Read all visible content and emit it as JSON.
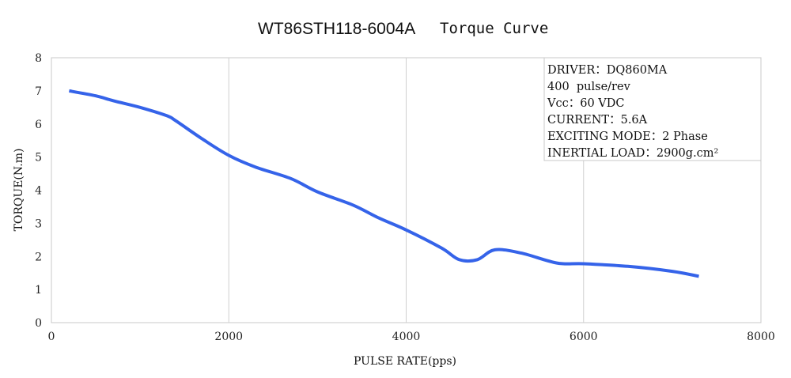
{
  "title": {
    "model": "WT86STH118-6004A",
    "curve": "Torque Curve"
  },
  "info_box": [
    "DRIVER：DQ860MA",
    "400  pulse/rev",
    "Vcc：60 VDC",
    "CURRENT：5.6A",
    "EXCITING MODE：2 Phase",
    "INERTIAL LOAD：2900g.cm²"
  ],
  "chart_data": {
    "type": "line",
    "title": "WT86STH118-6004A  Torque Curve",
    "xlabel": "PULSE  RATE(pps)",
    "ylabel": "TORQUE(N.m)",
    "xlim": [
      0,
      8000
    ],
    "ylim": [
      0,
      8
    ],
    "xticks": [
      0,
      2000,
      4000,
      6000,
      8000
    ],
    "yticks": [
      0,
      1,
      2,
      3,
      4,
      5,
      6,
      7,
      8
    ],
    "grid": true,
    "series_color": "#3563e9",
    "series": [
      {
        "x": [
          200,
          500,
          700,
          1000,
          1300,
          1400,
          1700,
          2000,
          2300,
          2700,
          3000,
          3400,
          3700,
          4000,
          4400,
          4600,
          4800,
          5000,
          5300,
          5700,
          6000,
          6500,
          7000,
          7300
        ],
        "y": [
          7.0,
          6.85,
          6.7,
          6.5,
          6.25,
          6.1,
          5.55,
          5.05,
          4.7,
          4.35,
          3.95,
          3.55,
          3.15,
          2.8,
          2.25,
          1.9,
          1.9,
          2.2,
          2.1,
          1.8,
          1.78,
          1.7,
          1.55,
          1.4
        ]
      }
    ]
  }
}
